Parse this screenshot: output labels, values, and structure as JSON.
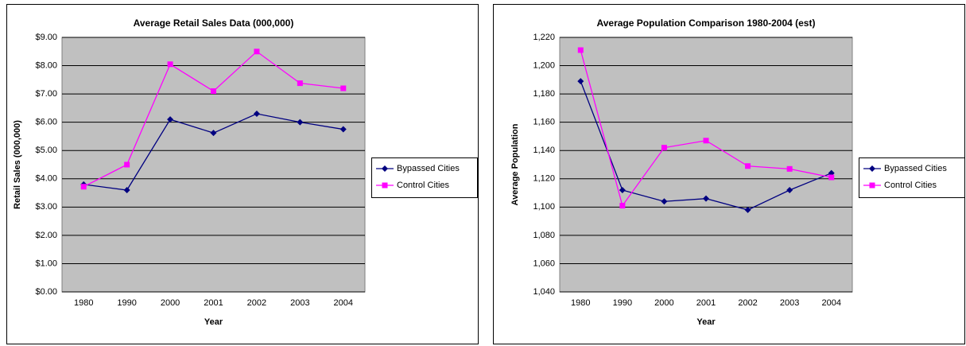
{
  "chart_data": [
    {
      "type": "line",
      "title": "Average Retail Sales Data (000,000)",
      "x_label": "Year",
      "y_label": "Retail Sales (000,000)",
      "categories": [
        "1980",
        "1990",
        "2000",
        "2001",
        "2002",
        "2003",
        "2004"
      ],
      "series": [
        {
          "name": "Bypassed Cities",
          "color": "#000080",
          "marker": "diamond",
          "values": [
            3.8,
            3.6,
            6.1,
            5.62,
            6.3,
            6.0,
            5.75
          ]
        },
        {
          "name": "Control Cities",
          "color": "#ff00ff",
          "marker": "square",
          "values": [
            3.72,
            4.5,
            8.05,
            7.1,
            8.5,
            7.38,
            7.2
          ]
        }
      ],
      "ylim": [
        0,
        9
      ],
      "yticks": [
        {
          "value": 0,
          "label": "$0.00"
        },
        {
          "value": 1,
          "label": "$1.00"
        },
        {
          "value": 2,
          "label": "$2.00"
        },
        {
          "value": 3,
          "label": "$3.00"
        },
        {
          "value": 4,
          "label": "$4.00"
        },
        {
          "value": 5,
          "label": "$5.00"
        },
        {
          "value": 6,
          "label": "$6.00"
        },
        {
          "value": 7,
          "label": "$7.00"
        },
        {
          "value": 8,
          "label": "$8.00"
        },
        {
          "value": 9,
          "label": "$9.00"
        }
      ],
      "grid": true,
      "legend": "right"
    },
    {
      "type": "line",
      "title": "Average Population Comparison 1980-2004 (est)",
      "x_label": "Year",
      "y_label": "Average Population",
      "categories": [
        "1980",
        "1990",
        "2000",
        "2001",
        "2002",
        "2003",
        "2004"
      ],
      "series": [
        {
          "name": "Bypassed Cities",
          "color": "#000080",
          "marker": "diamond",
          "values": [
            1189,
            1112,
            1104,
            1106,
            1098,
            1112,
            1124
          ]
        },
        {
          "name": "Control Cities",
          "color": "#ff00ff",
          "marker": "square",
          "values": [
            1211,
            1101,
            1142,
            1147,
            1129,
            1127,
            1121
          ]
        }
      ],
      "ylim": [
        1040,
        1220
      ],
      "yticks": [
        {
          "value": 1040,
          "label": "1,040"
        },
        {
          "value": 1060,
          "label": "1,060"
        },
        {
          "value": 1080,
          "label": "1,080"
        },
        {
          "value": 1100,
          "label": "1,100"
        },
        {
          "value": 1120,
          "label": "1,120"
        },
        {
          "value": 1140,
          "label": "1,140"
        },
        {
          "value": 1160,
          "label": "1,160"
        },
        {
          "value": 1180,
          "label": "1,180"
        },
        {
          "value": 1200,
          "label": "1,200"
        },
        {
          "value": 1220,
          "label": "1,220"
        }
      ],
      "grid": true,
      "legend": "right"
    }
  ]
}
